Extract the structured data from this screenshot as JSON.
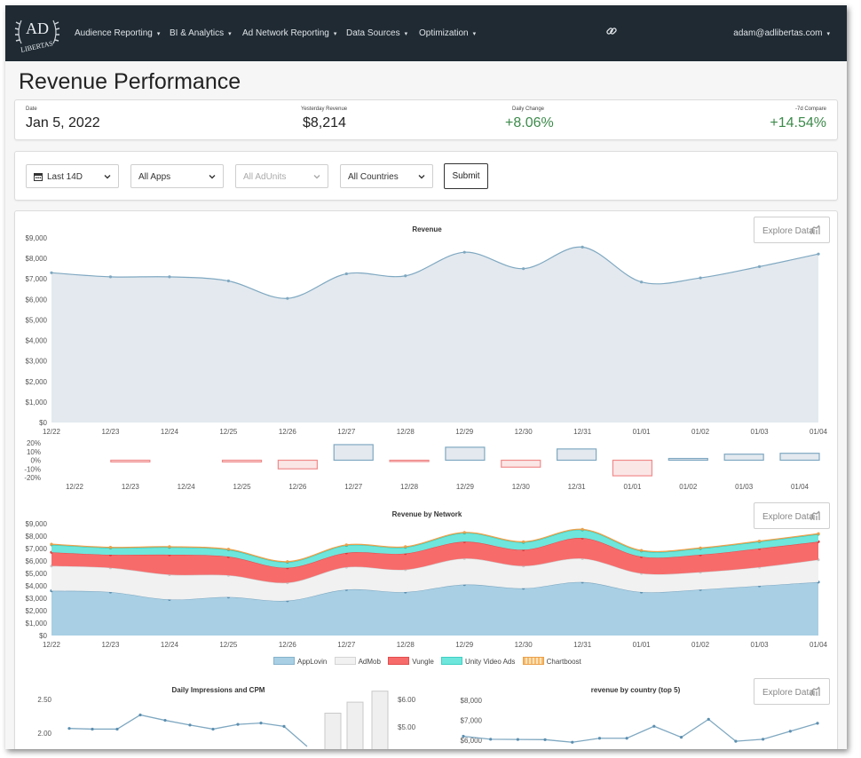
{
  "nav": {
    "brand_top": "AD",
    "brand_bottom": "LIBERTAS",
    "items": [
      {
        "label": "Audience Reporting"
      },
      {
        "label": "BI & Analytics"
      },
      {
        "label": "Ad Network Reporting"
      },
      {
        "label": "Data Sources"
      },
      {
        "label": "Optimization"
      }
    ],
    "user": "adam@adlibertas.com",
    "icons": {
      "link": "link-icon",
      "caret": "caret-down-icon"
    }
  },
  "page": {
    "title": "Revenue Performance"
  },
  "kpis": {
    "date": {
      "label": "Date",
      "value": "Jan 5, 2022"
    },
    "yesterday": {
      "label": "Yesterday Revenue",
      "value": "$8,214"
    },
    "daily_change": {
      "label": "Daily Change",
      "value": "+8.06%"
    },
    "compare": {
      "label": "-7d Compare",
      "value": "+14.54%"
    }
  },
  "filters": {
    "range": "Last 14D",
    "apps": "All Apps",
    "adunits": "All AdUnits",
    "countries": "All Countries",
    "submit": "Submit",
    "icons": {
      "calendar": "calendar-icon",
      "chevron": "chevron-down-icon"
    }
  },
  "explore_label": "Explore Data",
  "colors": {
    "nav_bg": "#1f2a33",
    "revenue_fill": "#e3e9ef",
    "revenue_line": "#7fa8c1",
    "applovin": "#a8cfe4",
    "admob": "#f1f1f1",
    "vungle": "#f76b6b",
    "unity": "#6ee6dc",
    "chartboost": "#f7b968",
    "positive": "#3c8a4a"
  },
  "chart_data": [
    {
      "type": "area",
      "title": "Revenue",
      "x": [
        "12/22",
        "12/23",
        "12/24",
        "12/25",
        "12/26",
        "12/27",
        "12/28",
        "12/29",
        "12/30",
        "12/31",
        "01/01",
        "01/02",
        "01/03",
        "01/04"
      ],
      "series": [
        {
          "values": [
            7300,
            7100,
            7100,
            6900,
            6050,
            7250,
            7150,
            8300,
            7500,
            8550,
            6850,
            7050,
            7600,
            8214
          ]
        }
      ],
      "ylim": [
        0,
        9000
      ],
      "yticks": [
        "$0",
        "$1,000",
        "$2,000",
        "$3,000",
        "$4,000",
        "$5,000",
        "$6,000",
        "$7,000",
        "$8,000",
        "$9,000"
      ],
      "grid": false
    },
    {
      "type": "bar",
      "x": [
        "12/22",
        "12/23",
        "12/24",
        "12/25",
        "12/26",
        "12/27",
        "12/28",
        "12/29",
        "12/30",
        "12/31",
        "01/01",
        "01/02",
        "01/03",
        "01/04"
      ],
      "values": [
        0,
        -2,
        0,
        -2,
        -10,
        18,
        -1,
        15,
        -8,
        13,
        -18,
        2,
        7,
        8
      ],
      "ylim": [
        -20,
        20
      ],
      "yticks": [
        "-20%",
        "-10%",
        "0%",
        "10%",
        "20%"
      ]
    },
    {
      "type": "area",
      "title": "Revenue by Network",
      "x": [
        "12/22",
        "12/23",
        "12/24",
        "12/25",
        "12/26",
        "12/27",
        "12/28",
        "12/29",
        "12/30",
        "12/31",
        "01/01",
        "01/02",
        "01/03",
        "01/04"
      ],
      "series": [
        {
          "name": "AppLovin",
          "values": [
            3600,
            3500,
            2900,
            3100,
            2800,
            3700,
            3500,
            4100,
            3800,
            4300,
            3500,
            3700,
            4000,
            4300
          ]
        },
        {
          "name": "AdMob",
          "values": [
            2000,
            1950,
            2000,
            1750,
            1450,
            1800,
            1800,
            2100,
            1800,
            1900,
            1500,
            1400,
            1500,
            1800
          ]
        },
        {
          "name": "Vungle",
          "values": [
            1100,
            1050,
            1600,
            1500,
            1200,
            1150,
            1300,
            1350,
            1300,
            1650,
            1350,
            1400,
            1500,
            1450
          ]
        },
        {
          "name": "Unity Video Ads",
          "values": [
            600,
            550,
            600,
            550,
            450,
            600,
            500,
            700,
            600,
            650,
            450,
            500,
            550,
            600
          ]
        },
        {
          "name": "Chartboost",
          "values": [
            50,
            50,
            50,
            50,
            50,
            50,
            50,
            50,
            50,
            50,
            50,
            50,
            50,
            50
          ]
        }
      ],
      "ylim": [
        0,
        9000
      ],
      "yticks": [
        "$0",
        "$1,000",
        "$2,000",
        "$3,000",
        "$4,000",
        "$5,000",
        "$6,000",
        "$7,000",
        "$8,000",
        "$9,000"
      ],
      "legend": "bottom"
    },
    {
      "type": "line",
      "title": "Daily Impressions and CPM",
      "series": [
        {
          "values": [
            2.07,
            2.06,
            2.06,
            2.27,
            2.19,
            2.12,
            2.06,
            2.13,
            2.15,
            2.1
          ]
        },
        {
          "type": "bar",
          "values": [
            5.5,
            5.9,
            6.3
          ]
        }
      ],
      "yticks_left": [
        "2.00",
        "2.50"
      ],
      "yticks_right": [
        "$5.00",
        "$6.00"
      ]
    },
    {
      "type": "line",
      "title": "revenue by country (top 5)",
      "series": [
        {
          "values": [
            6200,
            6050,
            6040,
            6030,
            5900,
            6100,
            6100,
            6700,
            6150,
            7050,
            5950,
            6050,
            6450,
            6850
          ]
        }
      ],
      "yticks": [
        "$6,000",
        "$7,000",
        "$8,000"
      ]
    }
  ]
}
